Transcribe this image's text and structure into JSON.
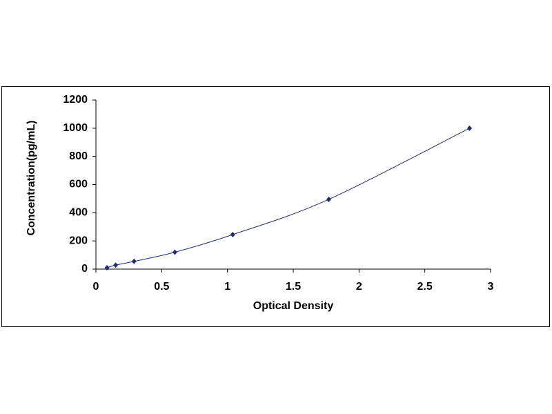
{
  "chart_data": {
    "type": "scatter",
    "x_label": "Optical Density",
    "y_label": "Concentration(pg/mL)",
    "x": [
      0.084,
      0.15,
      0.29,
      0.6,
      1.04,
      1.77,
      2.84
    ],
    "values": [
      10,
      28,
      55,
      120,
      245,
      495,
      1000
    ],
    "color": "#1f2a78",
    "smooth_line": true,
    "xlim": [
      0,
      3
    ],
    "xticks": [
      0,
      0.5,
      1,
      1.5,
      2,
      2.5,
      3
    ],
    "ylim": [
      0,
      1200
    ],
    "yticks": [
      0,
      200,
      400,
      600,
      800,
      1000,
      1200
    ],
    "grid": false
  }
}
